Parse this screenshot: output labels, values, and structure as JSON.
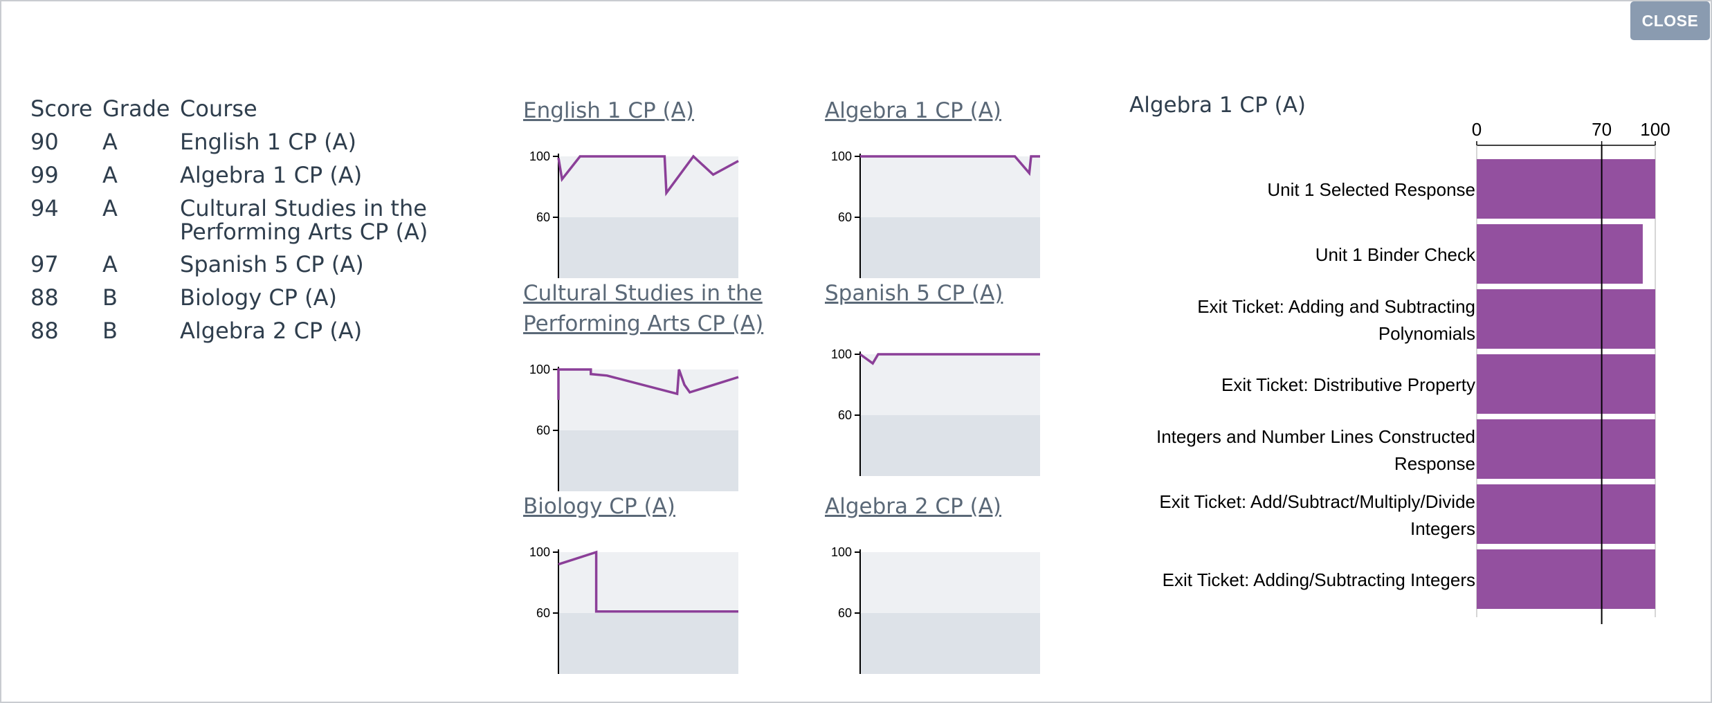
{
  "close_label": "CLOSE",
  "table": {
    "headers": {
      "score": "Score",
      "grade": "Grade",
      "course": "Course"
    },
    "rows": [
      {
        "score": "90",
        "grade": "A",
        "course": "English 1 CP (A)"
      },
      {
        "score": "99",
        "grade": "A",
        "course": "Algebra 1 CP (A)"
      },
      {
        "score": "94",
        "grade": "A",
        "course": "Cultural Studies in the Performing Arts CP (A)"
      },
      {
        "score": "97",
        "grade": "A",
        "course": "Spanish 5 CP (A)"
      },
      {
        "score": "88",
        "grade": "B",
        "course": "Biology CP (A)"
      },
      {
        "score": "88",
        "grade": "B",
        "course": "Algebra 2 CP (A)"
      }
    ]
  },
  "mini_charts": [
    {
      "title": "English 1 CP (A)",
      "y_ticks": [
        "100",
        "60"
      ],
      "points": [
        [
          0,
          99
        ],
        [
          0.02,
          85
        ],
        [
          0.12,
          100
        ],
        [
          0.59,
          100
        ],
        [
          0.59,
          100
        ],
        [
          0.6,
          76
        ],
        [
          0.75,
          100
        ],
        [
          0.86,
          88
        ],
        [
          1,
          97
        ]
      ]
    },
    {
      "title": "Algebra 1 CP (A)",
      "y_ticks": [
        "100",
        "60"
      ],
      "points": [
        [
          0,
          100
        ],
        [
          0.86,
          100
        ],
        [
          0.94,
          89
        ],
        [
          0.95,
          100
        ],
        [
          1,
          100
        ]
      ]
    },
    {
      "title": "Cultural Studies in the Performing Arts CP (A)",
      "y_ticks": [
        "100",
        "60"
      ],
      "points": [
        [
          0,
          80
        ],
        [
          0,
          100
        ],
        [
          0.18,
          100
        ],
        [
          0.18,
          97
        ],
        [
          0.27,
          96
        ],
        [
          0.66,
          84
        ],
        [
          0.67,
          100
        ],
        [
          0.7,
          90
        ],
        [
          0.73,
          85
        ],
        [
          1,
          95
        ]
      ]
    },
    {
      "title": "Spanish 5 CP (A)",
      "y_ticks": [
        "100",
        "60"
      ],
      "points": [
        [
          0,
          100
        ],
        [
          0.07,
          94
        ],
        [
          0.1,
          100
        ],
        [
          1,
          100
        ]
      ]
    },
    {
      "title": "Biology CP (A)",
      "y_ticks": [
        "100",
        "60"
      ],
      "points": [
        [
          0,
          92
        ],
        [
          0.21,
          100
        ],
        [
          0.21,
          100
        ],
        [
          0.21,
          61
        ],
        [
          1,
          61
        ]
      ]
    },
    {
      "title": "Algebra 2 CP (A)",
      "y_ticks": [
        "100",
        "60"
      ],
      "points": []
    }
  ],
  "bar_panel": {
    "title": "Algebra 1 CP (A)"
  },
  "chart_data": {
    "type": "bar",
    "orientation": "horizontal",
    "categories": [
      "Unit 1 Selected Response",
      "Unit 1 Binder Check",
      "Exit Ticket: Adding and Subtracting Polynomials",
      "Exit Ticket: Distributive Property",
      "Integers and Number Lines Constructed Response",
      "Exit Ticket: Add/Subtract/Multiply/Divide Integers",
      "Exit Ticket: Adding/Subtracting Integers"
    ],
    "label_lines": [
      [
        "Unit 1 Selected Response"
      ],
      [
        "Unit 1 Binder Check"
      ],
      [
        "Exit Ticket: Adding and Subtracting",
        "Polynomials"
      ],
      [
        "Exit Ticket: Distributive Property"
      ],
      [
        "Integers and Number Lines Constructed",
        "Response"
      ],
      [
        "Exit Ticket: Add/Subtract/Multiply/Divide",
        "Integers"
      ],
      [
        "Exit Ticket: Adding/Subtracting Integers"
      ]
    ],
    "values": [
      100,
      93,
      100,
      100,
      100,
      100,
      100
    ],
    "xlim": [
      0,
      100
    ],
    "x_ticks": [
      0,
      70,
      100
    ],
    "reference_line": 70,
    "bar_color": "#93509f"
  },
  "colors": {
    "line": "#8b3f98",
    "plot_top": "#eef0f3",
    "plot_bottom": "#dde2e8"
  }
}
